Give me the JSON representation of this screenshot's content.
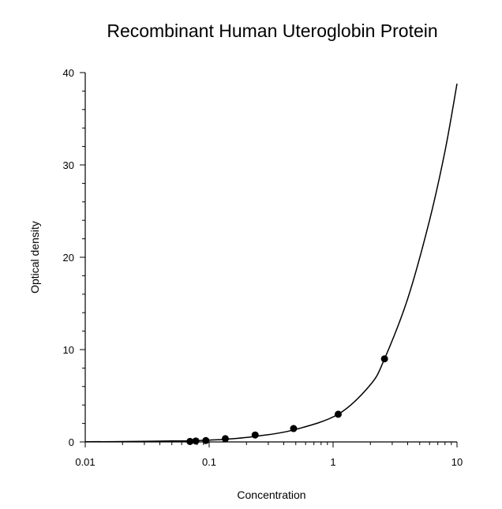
{
  "chart_data": {
    "type": "scatter",
    "title": "Recombinant Human Uteroglobin Protein",
    "xlabel": "Concentration",
    "ylabel": "Optical density",
    "xscale": "log",
    "xlim": [
      0.01,
      10
    ],
    "ylim": [
      0,
      40
    ],
    "xticks": [
      0.01,
      0.1,
      1,
      10
    ],
    "xtick_labels": [
      "0.01",
      "0.1",
      "1",
      "10"
    ],
    "yticks": [
      0,
      10,
      20,
      30,
      40
    ],
    "ytick_labels": [
      "0",
      "10",
      "20",
      "30",
      "40"
    ],
    "grid": false,
    "legend": "none",
    "series": [
      {
        "kind": "points",
        "x": [
          0.07,
          0.078,
          0.094,
          0.135,
          0.235,
          0.48,
          1.1,
          2.6
        ],
        "y": [
          0.05,
          0.1,
          0.15,
          0.35,
          0.75,
          1.45,
          3.0,
          9.0
        ]
      },
      {
        "kind": "fitted-curve",
        "x": [
          0.01,
          0.02,
          0.05,
          0.07,
          0.1,
          0.135,
          0.235,
          0.48,
          1.1,
          2.0,
          2.6,
          4.0,
          6.0,
          8.0,
          10.0
        ],
        "y": [
          0.02,
          0.04,
          0.1,
          0.12,
          0.2,
          0.28,
          0.6,
          1.3,
          3.0,
          6.2,
          9.0,
          15.5,
          24.0,
          31.5,
          38.8
        ]
      }
    ]
  }
}
